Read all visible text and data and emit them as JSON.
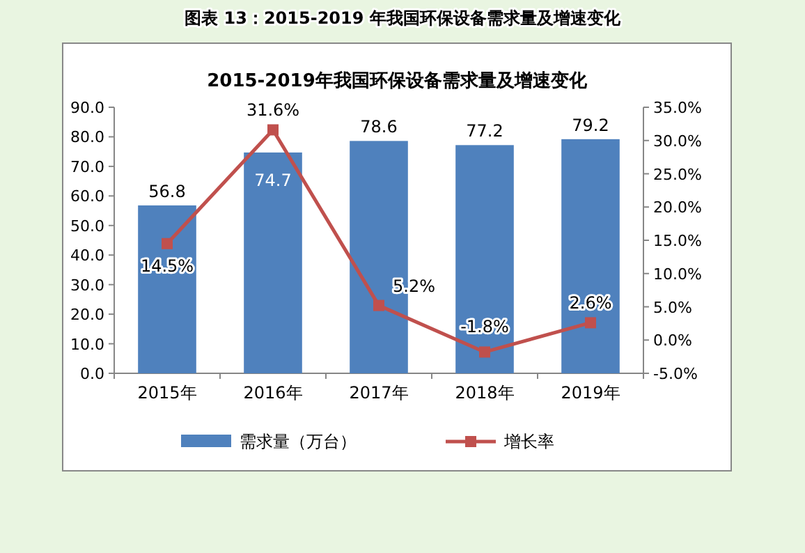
{
  "chart_data": {
    "type": "bar",
    "title": "2015-2019年我国环保设备需求量及增速变化",
    "annotations": [
      "图表 13：2015-2019 年我国环保设备需求量及增速变化"
    ],
    "categories": [
      "2015年",
      "2016年",
      "2017年",
      "2018年",
      "2019年"
    ],
    "series": [
      {
        "name": "需求量（万台）",
        "color": "#4f81bd",
        "values": [
          56.8,
          74.7,
          78.6,
          77.2,
          79.2
        ],
        "value_labels": [
          "56.8",
          "74.7",
          "78.6",
          "77.2",
          "79.2"
        ]
      },
      {
        "name": "增长率",
        "type": "line",
        "axis": "y2",
        "color": "#c0504d",
        "values": [
          14.5,
          31.6,
          5.2,
          -1.8,
          2.6
        ],
        "value_labels": [
          "14.5%",
          "31.6%",
          "5.2%",
          "-1.8%",
          "2.6%"
        ]
      }
    ],
    "ylim": [
      0,
      90
    ],
    "yticks": [
      {
        "value": 0,
        "label": "0.0"
      },
      {
        "value": 10,
        "label": "10.0"
      },
      {
        "value": 20,
        "label": "20.0"
      },
      {
        "value": 30,
        "label": "30.0"
      },
      {
        "value": 40,
        "label": "40.0"
      },
      {
        "value": 50,
        "label": "50.0"
      },
      {
        "value": 60,
        "label": "60.0"
      },
      {
        "value": 70,
        "label": "70.0"
      },
      {
        "value": 80,
        "label": "80.0"
      },
      {
        "value": 90,
        "label": "90.0"
      }
    ],
    "y2lim": [
      -5,
      35
    ],
    "y2ticks": [
      {
        "value": -5,
        "label": "-5.0%"
      },
      {
        "value": 0,
        "label": "0.0%"
      },
      {
        "value": 5,
        "label": "5.0%"
      },
      {
        "value": 10,
        "label": "10.0%"
      },
      {
        "value": 15,
        "label": "15.0%"
      },
      {
        "value": 20,
        "label": "20.0%"
      },
      {
        "value": 25,
        "label": "25.0%"
      },
      {
        "value": 30,
        "label": "30.0%"
      },
      {
        "value": 35,
        "label": "35.0%"
      }
    ],
    "marker": "square",
    "legend": "bottom"
  }
}
